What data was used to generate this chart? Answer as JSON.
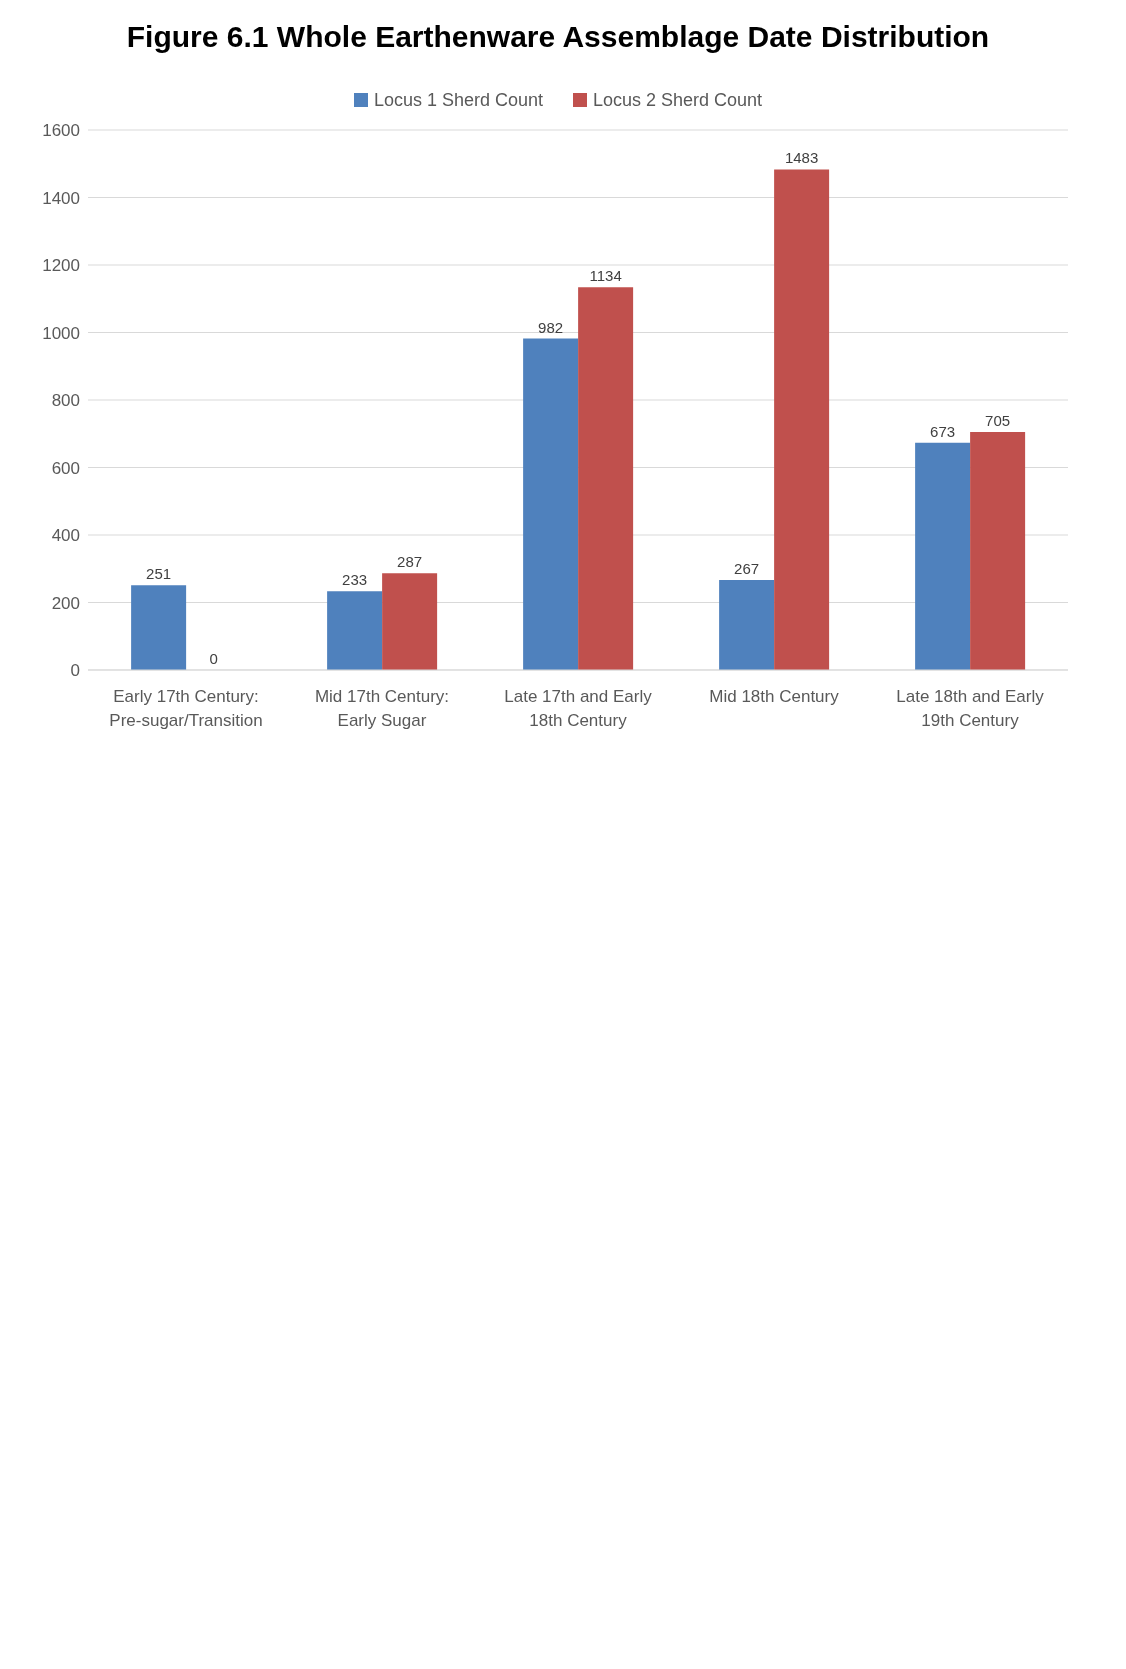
{
  "chart_data": {
    "type": "bar",
    "title": "Figure 6.1 Whole Earthenware Assemblage Date Distribution",
    "categories": [
      "Early 17th Century: Pre-sugar/Transition",
      "Mid 17th Century: Early Sugar",
      "Late 17th and Early 18th Century",
      "Mid 18th Century",
      "Late 18th and Early 19th Century"
    ],
    "series": [
      {
        "name": "Locus 1 Sherd Count",
        "color": "#4f81bd",
        "values": [
          251,
          233,
          982,
          267,
          673
        ]
      },
      {
        "name": "Locus 2 Sherd Count",
        "color": "#c0504d",
        "values": [
          0,
          287,
          1134,
          1483,
          705
        ]
      }
    ],
    "ylim": [
      0,
      1600
    ],
    "yticks": [
      0,
      200,
      400,
      600,
      800,
      1000,
      1200,
      1400,
      1600
    ],
    "grid": "y",
    "legend": "top",
    "data_labels": true
  }
}
